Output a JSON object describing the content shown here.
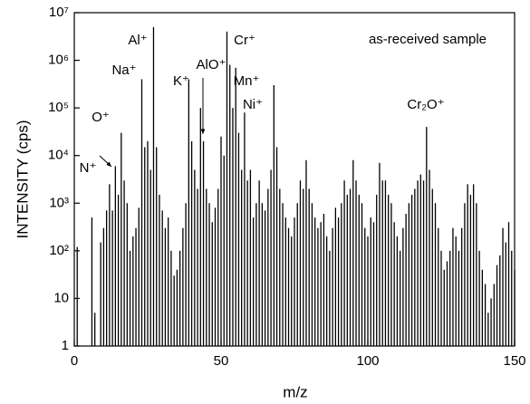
{
  "chart_data": {
    "type": "bar",
    "x_label": "m/z",
    "y_label": "INTENSITY (cps)",
    "annotations": [
      "as-received sample",
      "Al⁺",
      "Na⁺",
      "O⁺",
      "N⁺",
      "K⁺",
      "AlO⁺",
      "Cr⁺",
      "Mn⁺",
      "Ni⁺",
      "Cr₂O⁺"
    ],
    "x": [
      1,
      6,
      7,
      9,
      10,
      11,
      12,
      13,
      14,
      15,
      16,
      17,
      18,
      19,
      20,
      21,
      22,
      23,
      24,
      25,
      26,
      27,
      28,
      29,
      30,
      31,
      32,
      33,
      34,
      35,
      36,
      37,
      38,
      39,
      40,
      41,
      42,
      43,
      44,
      45,
      46,
      47,
      48,
      49,
      50,
      51,
      52,
      53,
      54,
      55,
      56,
      57,
      58,
      59,
      60,
      61,
      62,
      63,
      64,
      65,
      66,
      67,
      68,
      69,
      70,
      71,
      72,
      73,
      74,
      75,
      76,
      77,
      78,
      79,
      80,
      81,
      82,
      83,
      84,
      85,
      86,
      87,
      88,
      89,
      90,
      91,
      92,
      93,
      94,
      95,
      96,
      97,
      98,
      99,
      100,
      101,
      102,
      103,
      104,
      105,
      106,
      107,
      108,
      109,
      110,
      111,
      112,
      113,
      114,
      115,
      116,
      117,
      118,
      119,
      120,
      121,
      122,
      123,
      124,
      125,
      126,
      127,
      128,
      129,
      130,
      131,
      132,
      133,
      134,
      135,
      136,
      137,
      138,
      139,
      140,
      141,
      142,
      143,
      144,
      145,
      146,
      147,
      148,
      149,
      150
    ],
    "values": [
      120,
      500,
      5,
      150,
      300,
      700,
      2500,
      700,
      6000,
      1500,
      30000,
      3000,
      1000,
      100,
      200,
      300,
      800,
      400000,
      15000,
      20000,
      5000,
      5000000,
      15000,
      1500,
      700,
      300,
      500,
      100,
      30,
      40,
      100,
      300,
      1000,
      400000,
      20000,
      5000,
      2000,
      100000,
      20000,
      2000,
      1000,
      400,
      800,
      2000,
      25000,
      10000,
      4000000,
      800000,
      100000,
      700000,
      30000,
      5000,
      80000,
      3000,
      5000,
      500,
      1000,
      3000,
      1000,
      700,
      2000,
      5000,
      300000,
      15000,
      2000,
      1000,
      500,
      300,
      200,
      500,
      1000,
      3000,
      2000,
      8000,
      2000,
      1000,
      500,
      300,
      400,
      600,
      200,
      100,
      300,
      800,
      500,
      1000,
      3000,
      1500,
      2000,
      8000,
      3000,
      1500,
      1000,
      300,
      200,
      500,
      400,
      1500,
      7000,
      3000,
      3000,
      1500,
      1000,
      400,
      200,
      100,
      300,
      600,
      1000,
      1500,
      2000,
      3000,
      4000,
      3000,
      40000,
      5000,
      2000,
      1000,
      300,
      100,
      40,
      60,
      100,
      300,
      200,
      100,
      300,
      1000,
      2500,
      1500,
      2500,
      1000,
      100,
      40,
      20,
      5,
      10,
      20,
      50,
      80,
      300,
      150,
      400,
      100,
      40
    ],
    "color": "#000000",
    "xlim": [
      0,
      150
    ],
    "xticks": [
      0,
      50,
      100,
      150
    ],
    "ylim": [
      1,
      10000000
    ],
    "y_scale": "log",
    "yticks": [
      1,
      10,
      {
        "value": 100,
        "label": "10²"
      },
      {
        "value": 1000,
        "label": "10³"
      },
      {
        "value": 10000,
        "label": "10⁴"
      },
      {
        "value": 100000,
        "label": "10⁵"
      },
      {
        "value": 1000000,
        "label": "10⁶"
      },
      {
        "value": 10000000,
        "label": "10⁷"
      }
    ]
  }
}
